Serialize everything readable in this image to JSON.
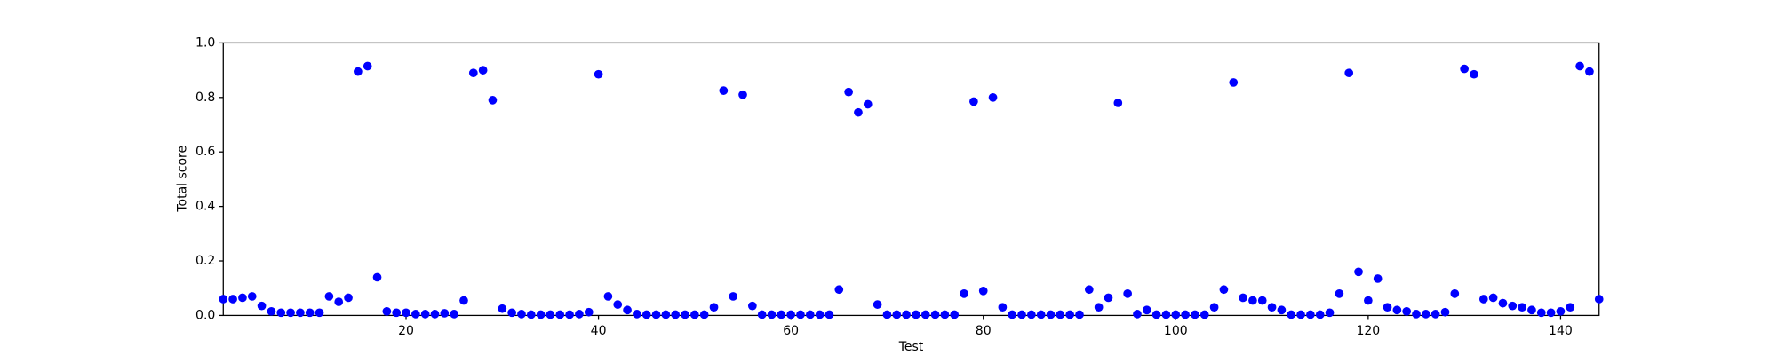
{
  "chart_data": {
    "type": "scatter",
    "x_label": "Test",
    "y_label": "Total score",
    "color": "#0000ff",
    "x": [
      1,
      2,
      3,
      4,
      5,
      6,
      7,
      8,
      9,
      10,
      11,
      12,
      13,
      14,
      15,
      16,
      17,
      18,
      19,
      20,
      21,
      22,
      23,
      24,
      25,
      26,
      27,
      28,
      29,
      30,
      31,
      32,
      33,
      34,
      35,
      36,
      37,
      38,
      39,
      40,
      41,
      42,
      43,
      44,
      45,
      46,
      47,
      48,
      49,
      50,
      51,
      52,
      53,
      54,
      55,
      56,
      57,
      58,
      59,
      60,
      61,
      62,
      63,
      64,
      65,
      66,
      67,
      68,
      69,
      70,
      71,
      72,
      73,
      74,
      75,
      76,
      77,
      78,
      79,
      80,
      81,
      82,
      83,
      84,
      85,
      86,
      87,
      88,
      89,
      90,
      91,
      92,
      93,
      94,
      95,
      96,
      97,
      98,
      99,
      100,
      101,
      102,
      103,
      104,
      105,
      106,
      107,
      108,
      109,
      110,
      111,
      112,
      113,
      114,
      115,
      116,
      117,
      118,
      119,
      120,
      121,
      122,
      123,
      124,
      125,
      126,
      127,
      128,
      129,
      130,
      131,
      132,
      133,
      134,
      135,
      136,
      137,
      138,
      139,
      140,
      141,
      142,
      143,
      144
    ],
    "values": [
      0.06,
      0.06,
      0.065,
      0.07,
      0.035,
      0.015,
      0.01,
      0.01,
      0.01,
      0.01,
      0.01,
      0.07,
      0.05,
      0.065,
      0.895,
      0.915,
      0.14,
      0.015,
      0.01,
      0.01,
      0.005,
      0.005,
      0.005,
      0.008,
      0.005,
      0.055,
      0.89,
      0.9,
      0.79,
      0.025,
      0.01,
      0.005,
      0.003,
      0.003,
      0.003,
      0.003,
      0.003,
      0.005,
      0.012,
      0.885,
      0.07,
      0.04,
      0.02,
      0.005,
      0.003,
      0.003,
      0.003,
      0.003,
      0.003,
      0.003,
      0.003,
      0.03,
      0.825,
      0.07,
      0.81,
      0.035,
      0.003,
      0.003,
      0.003,
      0.003,
      0.003,
      0.003,
      0.003,
      0.003,
      0.095,
      0.82,
      0.745,
      0.775,
      0.04,
      0.003,
      0.003,
      0.003,
      0.003,
      0.003,
      0.003,
      0.003,
      0.003,
      0.08,
      0.785,
      0.09,
      0.8,
      0.03,
      0.003,
      0.003,
      0.003,
      0.003,
      0.003,
      0.003,
      0.003,
      0.003,
      0.095,
      0.03,
      0.065,
      0.78,
      0.08,
      0.005,
      0.02,
      0.003,
      0.003,
      0.003,
      0.003,
      0.003,
      0.003,
      0.03,
      0.095,
      0.855,
      0.065,
      0.055,
      0.055,
      0.03,
      0.02,
      0.003,
      0.003,
      0.003,
      0.003,
      0.01,
      0.08,
      0.89,
      0.16,
      0.055,
      0.135,
      0.03,
      0.02,
      0.015,
      0.005,
      0.005,
      0.005,
      0.012,
      0.08,
      0.905,
      0.885,
      0.06,
      0.065,
      0.045,
      0.035,
      0.03,
      0.02,
      0.01,
      0.01,
      0.015,
      0.03,
      0.915,
      0.895,
      0.06
    ],
    "xlim": [
      1,
      144
    ],
    "xticks": [
      20,
      40,
      60,
      80,
      100,
      120,
      140
    ],
    "ylim": [
      0,
      1
    ],
    "yticks": [
      {
        "value": 0,
        "label": "0.0"
      },
      0.2,
      0.4,
      0.6,
      0.8,
      {
        "value": 1,
        "label": "1.0"
      }
    ]
  }
}
